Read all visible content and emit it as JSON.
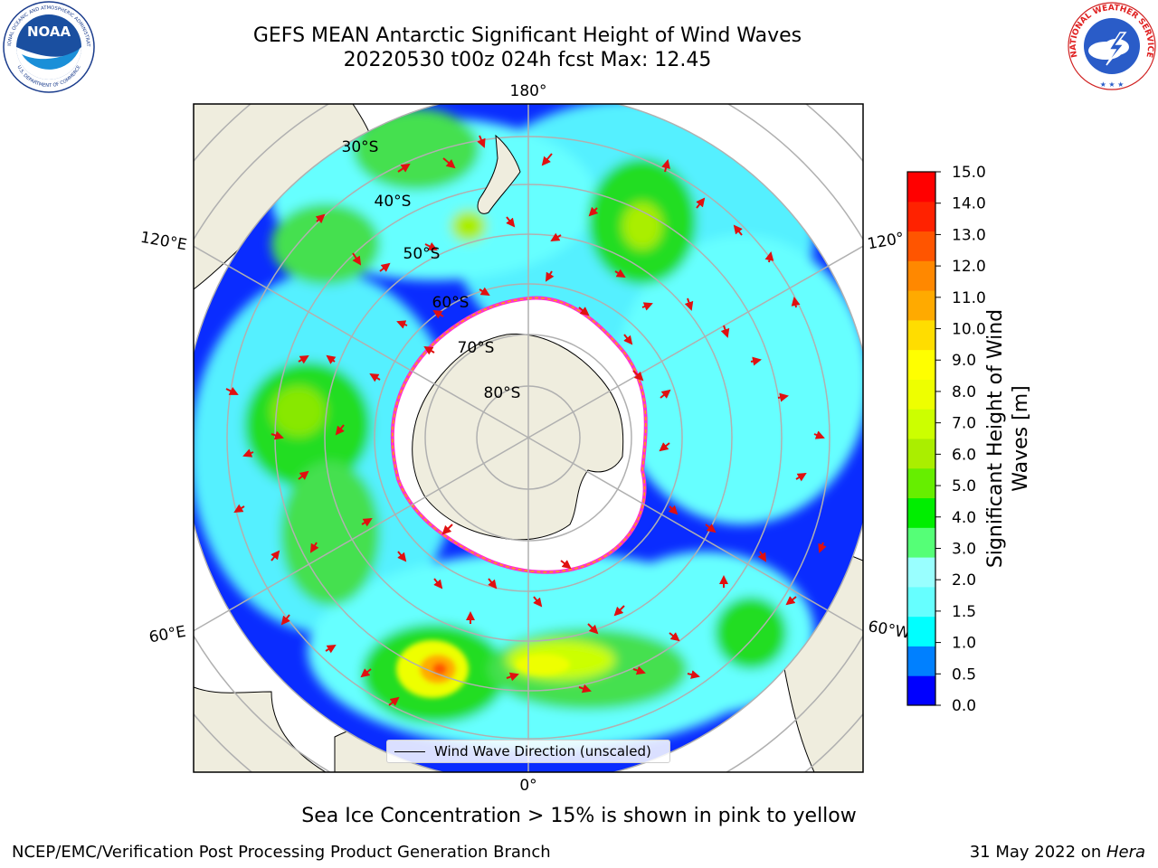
{
  "header": {
    "title_line1": "GEFS MEAN Antarctic Significant Height of Wind Waves",
    "title_line2": "20220530 t00z 024h fcst   Max: 12.45"
  },
  "map": {
    "projection": "south-polar-stereographic",
    "lon_labels": {
      "top": "180°",
      "bottom": "0°",
      "left_upper": "120°E",
      "left_lower": "60°E",
      "right_upper": "120°",
      "right_lower": "60°W"
    },
    "lat_labels": [
      "30°S",
      "40°S",
      "50°S",
      "60°S",
      "70°S",
      "80°S"
    ],
    "land_color": "#efedde",
    "ice_edge_colors": [
      "#ff33cc",
      "#ffa500",
      "#ffee00"
    ]
  },
  "colorbar": {
    "label": "Significant Height of Wind Waves [m]",
    "label_line1": "Significant Height of Wind",
    "label_line2": "Waves [m]",
    "ticks": [
      "0.0",
      "0.5",
      "1.0",
      "1.5",
      "2.0",
      "3.0",
      "4.0",
      "5.0",
      "6.0",
      "7.0",
      "8.0",
      "9.0",
      "10.0",
      "11.0",
      "12.0",
      "13.0",
      "14.0",
      "15.0"
    ],
    "colors": [
      "#0000ff",
      "#0080ff",
      "#00ffff",
      "#66ffff",
      "#99ffff",
      "#55ff77",
      "#00ee00",
      "#66ee00",
      "#aaee00",
      "#ccff00",
      "#eeff00",
      "#ffff00",
      "#ffdd00",
      "#ffaa00",
      "#ff8800",
      "#ff5500",
      "#ff2200",
      "#ff0000"
    ]
  },
  "legend": {
    "label": "Wind Wave Direction (unscaled)"
  },
  "footer": {
    "note": "Sea Ice Concentration > 15% is shown in pink to yellow",
    "credit_left": "NCEP/EMC/Verification Post Processing Product Generation Branch",
    "date": "31 May 2022",
    "on": " on ",
    "machine": "Hera"
  },
  "logos": {
    "noaa_text": "NOAA",
    "noaa_ring_top": "NATIONAL OCEANIC AND ATMOSPHERIC ADMINISTRATION",
    "noaa_ring_bottom": "U.S. DEPARTMENT OF COMMERCE",
    "nws_ring": "NATIONAL WEATHER SERVICE"
  }
}
